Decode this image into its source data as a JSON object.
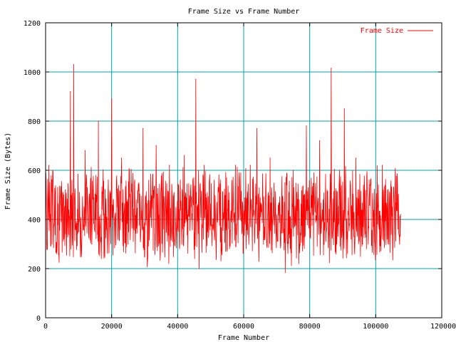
{
  "chart_data": {
    "type": "line",
    "title": "Frame Size vs Frame Number",
    "xlabel": "Frame Number",
    "ylabel": "Frame Size (Bytes)",
    "xlim": [
      0,
      120000
    ],
    "ylim": [
      0,
      1200
    ],
    "x_ticks": [
      "0",
      "20000",
      "40000",
      "60000",
      "80000",
      "100000",
      "120000"
    ],
    "y_ticks": [
      "0",
      "200",
      "400",
      "600",
      "800",
      "1000",
      "1200"
    ],
    "grid": true,
    "grid_color": "#00a0a8",
    "legend_position": "top-right",
    "series": [
      {
        "name": "Frame Size",
        "color": "#ff0000",
        "x": [
          0,
          1000,
          2500,
          4000,
          6000,
          7500,
          8500,
          10000,
          12000,
          14000,
          16000,
          17500,
          19000,
          20000,
          21000,
          23000,
          25000,
          27000,
          29500,
          31500,
          33500,
          35500,
          37500,
          40000,
          42000,
          44000,
          45500,
          46500,
          48000,
          50000,
          52500,
          55000,
          57500,
          60000,
          62000,
          64000,
          66000,
          68000,
          70000,
          72500,
          75000,
          77000,
          79000,
          81000,
          83000,
          85000,
          86500,
          88000,
          89000,
          90500,
          92000,
          94000,
          96000,
          98000,
          100000,
          102000,
          104000,
          106000,
          107500
        ],
        "values": [
          300,
          620,
          380,
          260,
          520,
          920,
          1030,
          350,
          680,
          300,
          800,
          420,
          560,
          890,
          400,
          650,
          300,
          560,
          770,
          380,
          700,
          440,
          620,
          360,
          660,
          540,
          970,
          200,
          620,
          380,
          580,
          280,
          620,
          420,
          620,
          770,
          300,
          650,
          380,
          550,
          600,
          300,
          780,
          420,
          720,
          350,
          1015,
          260,
          600,
          850,
          380,
          650,
          300,
          560,
          420,
          620,
          300,
          560,
          420
        ]
      }
    ]
  }
}
